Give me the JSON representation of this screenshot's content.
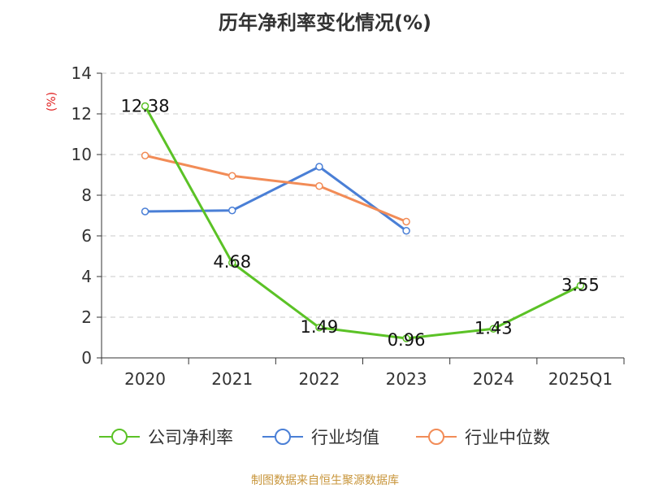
{
  "chart_data": {
    "type": "line",
    "title": "历年净利率变化情况(%)",
    "ylabel": "(%)",
    "xlabel": "",
    "ylim": [
      0,
      14
    ],
    "yticks": [
      0,
      2,
      4,
      6,
      8,
      10,
      12,
      14
    ],
    "categories": [
      "2020",
      "2021",
      "2022",
      "2023",
      "2024",
      "2025Q1"
    ],
    "grid": true,
    "legend_position": "bottom",
    "series": [
      {
        "name": "公司净利率",
        "color": "#5bc226",
        "values": [
          12.38,
          4.68,
          1.49,
          0.96,
          1.43,
          3.55
        ],
        "labels": [
          "12.38",
          "4.68",
          "1.49",
          "0.96",
          "1.43",
          "3.55"
        ]
      },
      {
        "name": "行业均值",
        "color": "#4a7fd6",
        "values": [
          7.2,
          7.25,
          9.4,
          6.25,
          null,
          null
        ]
      },
      {
        "name": "行业中位数",
        "color": "#f28c57",
        "values": [
          9.95,
          8.95,
          8.45,
          6.7,
          null,
          null
        ]
      }
    ]
  },
  "source": "制图数据来自恒生聚源数据库"
}
